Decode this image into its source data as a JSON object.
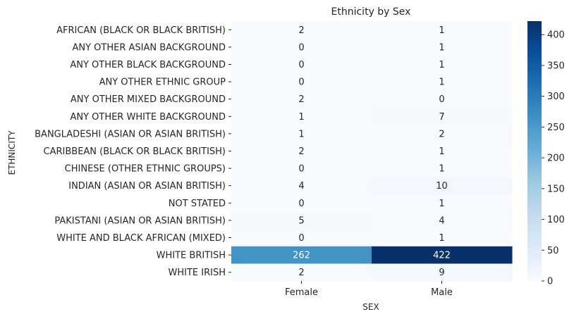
{
  "chart_data": {
    "type": "heatmap",
    "title": "Ethnicity by Sex",
    "xlabel": "SEX",
    "ylabel": "ETHNICITY",
    "x_categories": [
      "Female",
      "Male"
    ],
    "y_categories": [
      "AFRICAN (BLACK OR BLACK BRITISH)",
      "ANY OTHER ASIAN BACKGROUND",
      "ANY OTHER BLACK BACKGROUND",
      "ANY OTHER ETHNIC GROUP",
      "ANY OTHER MIXED BACKGROUND",
      "ANY OTHER WHITE BACKGROUND",
      "BANGLADESHI (ASIAN OR ASIAN BRITISH)",
      "CARIBBEAN (BLACK OR BLACK BRITISH)",
      "CHINESE (OTHER ETHNIC GROUPS)",
      "INDIAN (ASIAN OR ASIAN BRITISH)",
      "NOT STATED",
      "PAKISTANI (ASIAN OR ASIAN BRITISH)",
      "WHITE AND BLACK AFRICAN (MIXED)",
      "WHITE BRITISH",
      "WHITE IRISH"
    ],
    "values": [
      [
        2,
        1
      ],
      [
        0,
        1
      ],
      [
        0,
        1
      ],
      [
        0,
        1
      ],
      [
        2,
        0
      ],
      [
        1,
        7
      ],
      [
        1,
        2
      ],
      [
        2,
        1
      ],
      [
        0,
        1
      ],
      [
        4,
        10
      ],
      [
        0,
        1
      ],
      [
        5,
        4
      ],
      [
        0,
        1
      ],
      [
        262,
        422
      ],
      [
        2,
        9
      ]
    ],
    "colormap": "Blues",
    "color_range": [
      0,
      422
    ],
    "colorbar_ticks": [
      0,
      50,
      100,
      150,
      200,
      250,
      300,
      350,
      400
    ],
    "annotation_dark_color": "#262626",
    "annotation_light_color": "#ffffff"
  }
}
